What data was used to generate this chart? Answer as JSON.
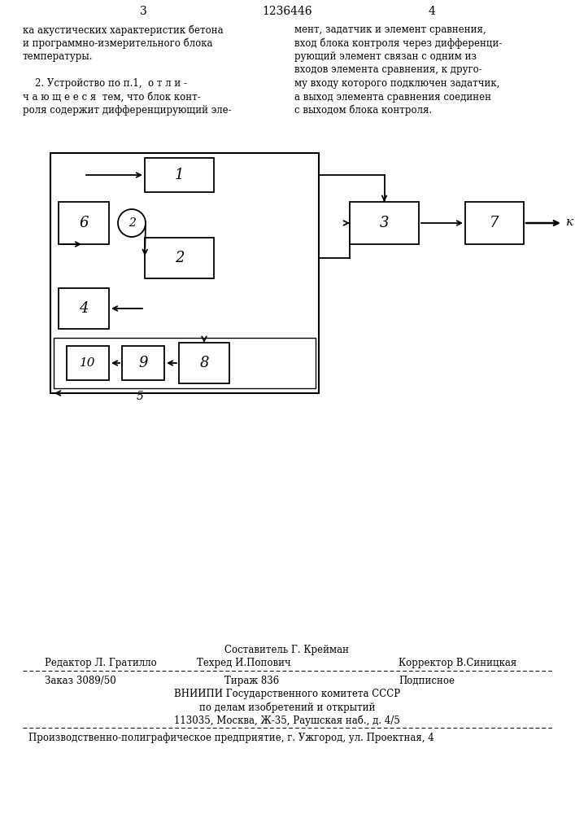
{
  "page_num_left": "3",
  "page_num_center": "1236446",
  "page_num_right": "4",
  "text_left": [
    "ка акустических характеристик бетона",
    "и программно-измерительного блока",
    "температуры.",
    "",
    "    2. Устройство по п.1,  о т л и -",
    "ч а ю щ е е с я  тем, что блок конт-",
    "роля содержит дифференцирующий эле-"
  ],
  "text_right": [
    "мент, задатчик и элемент сравнения,",
    "вход блока контроля через дифференци-",
    "рующий элемент связан с одним из",
    "входов элемента сравнения, к друго-",
    "му входу которого подключен задатчик,",
    "а выход элемента сравнения соединен",
    "с выходом блока контроля."
  ],
  "footer_line0": "Составитель Г. Крейман",
  "footer_line1_col1": "Редактор Л. Гратилло",
  "footer_line1_col2": "Техред И.Попович",
  "footer_line1_col3": "Корректор В.Синицкая",
  "footer_line2_col1": "Заказ 3089/50",
  "footer_line2_col2": "Тираж 836",
  "footer_line2_col3": "Подписное",
  "footer_line3": "ВНИИПИ Государственного комитета СССР",
  "footer_line4": "по делам изобретений и открытий",
  "footer_line5": "113035, Москва, Ж-35, Раушская наб., д. 4/5",
  "footer_line6": "Производственно-полиграфическое предприятие, г. Ужгород, ул. Проектная, 4",
  "bg_color": "#ffffff",
  "text_color": "#000000"
}
